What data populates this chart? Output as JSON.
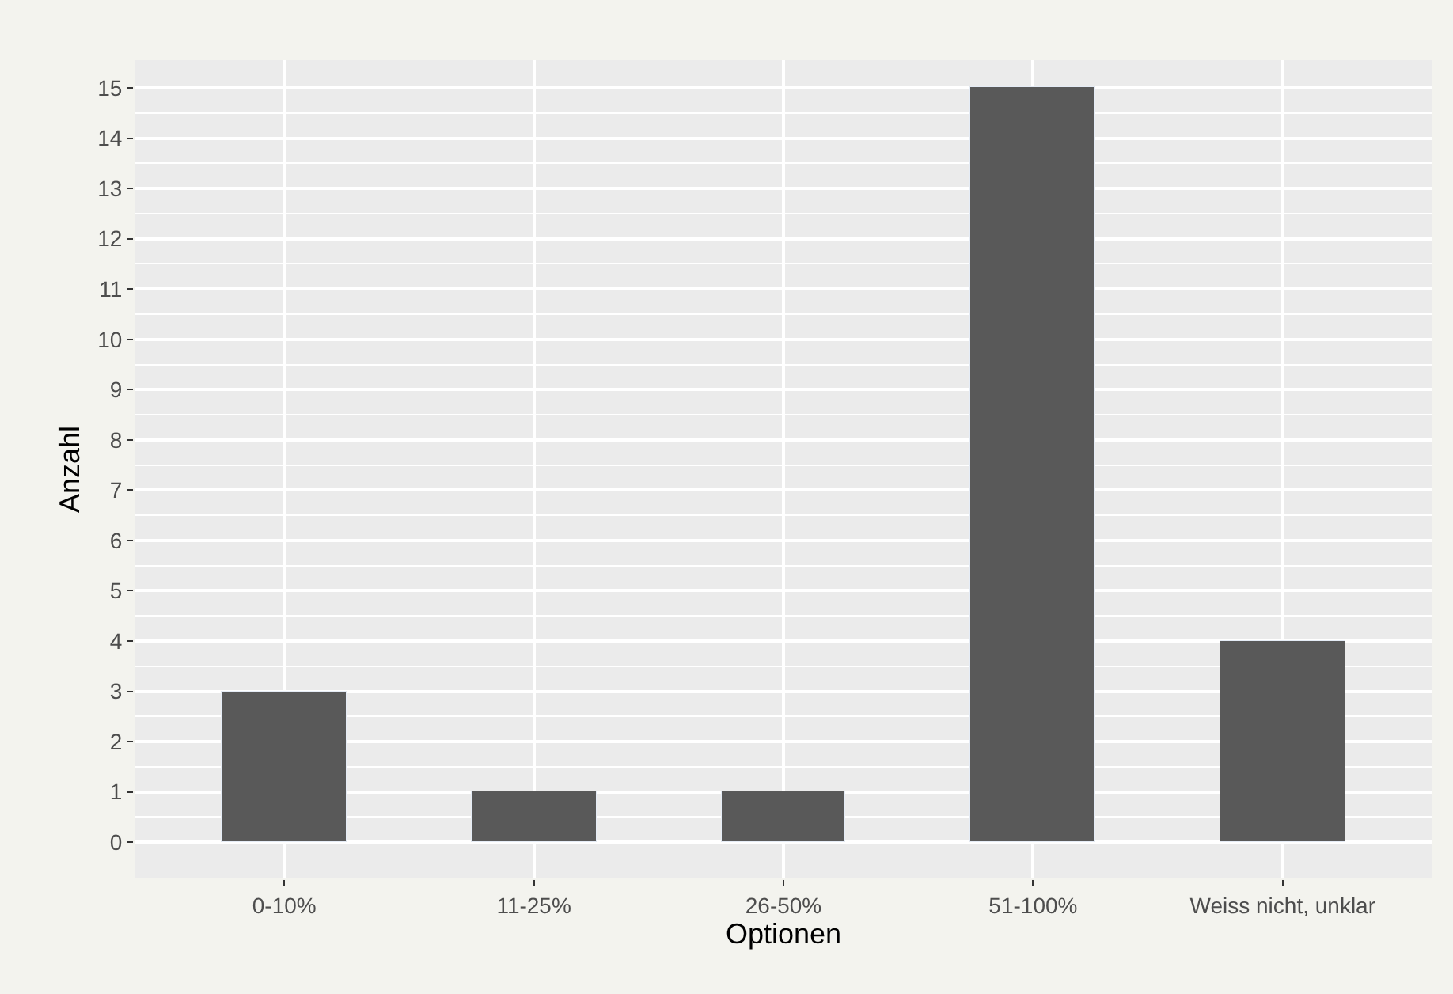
{
  "chart_data": {
    "type": "bar",
    "xlabel": "Optionen",
    "ylabel": "Anzahl",
    "categories": [
      "0-10%",
      "11-25%",
      "26-50%",
      "51-100%",
      "Weiss nicht, unklar"
    ],
    "values": [
      3,
      1,
      1,
      15,
      4
    ],
    "color": "#595959",
    "ylim": [
      -0.72,
      15.55
    ],
    "yticks": [
      0,
      1,
      2,
      3,
      4,
      5,
      6,
      7,
      8,
      9,
      10,
      11,
      12,
      13,
      14,
      15
    ],
    "grid": true
  }
}
